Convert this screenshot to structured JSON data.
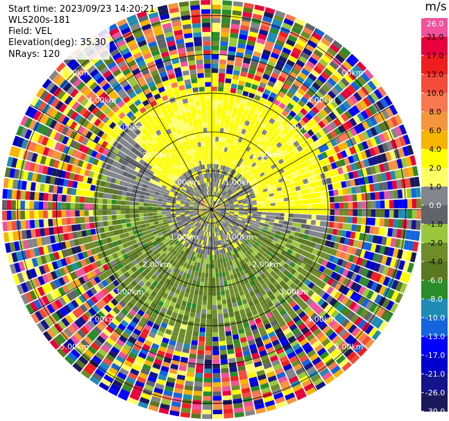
{
  "header": {
    "start_time": "Start time: 2023/09/23 14:20:21",
    "instrument": "WLS200s-181",
    "field": "Field: VEL",
    "elevation": "Elevation(deg): 35.30",
    "nrays": "NRays: 120"
  },
  "chart_data": {
    "type": "heatmap",
    "projection": "polar-ppi",
    "n_rays": 120,
    "range_rings_km": [
      1.0,
      2.0,
      3.0,
      4.0,
      5.0
    ],
    "ring_labels": [
      "1.00km",
      "2.00km",
      "3.00km",
      "4.00km",
      "5.00km"
    ],
    "max_range_km": 5.4,
    "colorbar": {
      "unit": "m/s",
      "ticks": [
        "26.0",
        "21.0",
        "17.0",
        "13.0",
        "10.0",
        "8.0",
        "6.0",
        "4.0",
        "2.0",
        "1.0",
        "0.0",
        "-1.0",
        "-2.0",
        "-4.0",
        "-6.0",
        "-8.0",
        "-10.0",
        "-13.0",
        "-17.0",
        "-21.0",
        "-26.0",
        "-30.0"
      ],
      "colors": [
        "#f0529c",
        "#e8003c",
        "#f01e1e",
        "#f54b3a",
        "#f87850",
        "#f5963c",
        "#f7b400",
        "#ffff00",
        "#ffff64",
        "#82858a",
        "#606468",
        "#9ac83c",
        "#6e8c2a",
        "#5a7820",
        "#2a8c2a",
        "#1e8cb4",
        "#1464dc",
        "#0000ff",
        "#0000cc",
        "#14148c",
        "#1a1a5a"
      ]
    },
    "regions": [
      {
        "r_km": [
          0.0,
          0.35
        ],
        "pattern": "mixed-noise"
      },
      {
        "r_km": [
          0.35,
          1.2
        ],
        "pattern": "gray-core"
      },
      {
        "r_km": [
          1.2,
          3.0
        ],
        "pattern": "dipole",
        "positive_direction": "north",
        "positive_value": 2.0,
        "negative_value": -2.0
      },
      {
        "r_km": [
          3.0,
          5.4
        ],
        "pattern": "noise"
      }
    ]
  }
}
